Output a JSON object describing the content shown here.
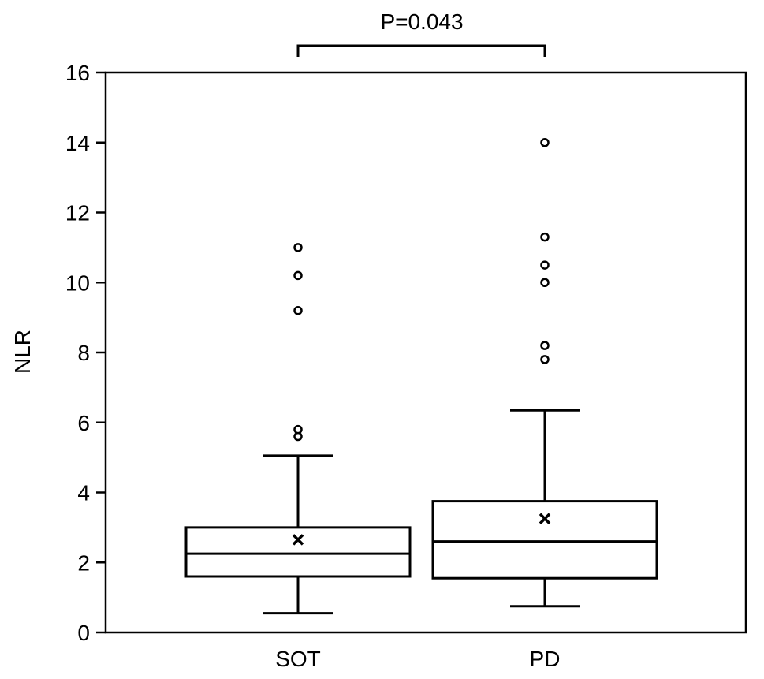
{
  "chart_data": {
    "type": "box",
    "ylabel": "NLR",
    "ylim": [
      0,
      16
    ],
    "yticks": [
      0,
      2,
      4,
      6,
      8,
      10,
      12,
      14,
      16
    ],
    "categories": [
      "SOT",
      "PD"
    ],
    "boxes": [
      {
        "category": "SOT",
        "whisker_low": 0.55,
        "q1": 1.6,
        "median": 2.25,
        "q3": 3.0,
        "whisker_high": 5.05,
        "mean": 2.65,
        "outliers": [
          5.6,
          5.8,
          9.2,
          10.2,
          11.0
        ]
      },
      {
        "category": "PD",
        "whisker_low": 0.75,
        "q1": 1.55,
        "median": 2.6,
        "q3": 3.75,
        "whisker_high": 6.35,
        "mean": 3.25,
        "outliers": [
          7.8,
          8.2,
          10.0,
          10.5,
          11.3,
          14.0
        ]
      }
    ],
    "annotation": {
      "text": "P=0.043",
      "between": [
        "SOT",
        "PD"
      ]
    },
    "grid": false,
    "legend": "none"
  },
  "colors": {
    "ink": "#000000",
    "background": "#ffffff"
  }
}
